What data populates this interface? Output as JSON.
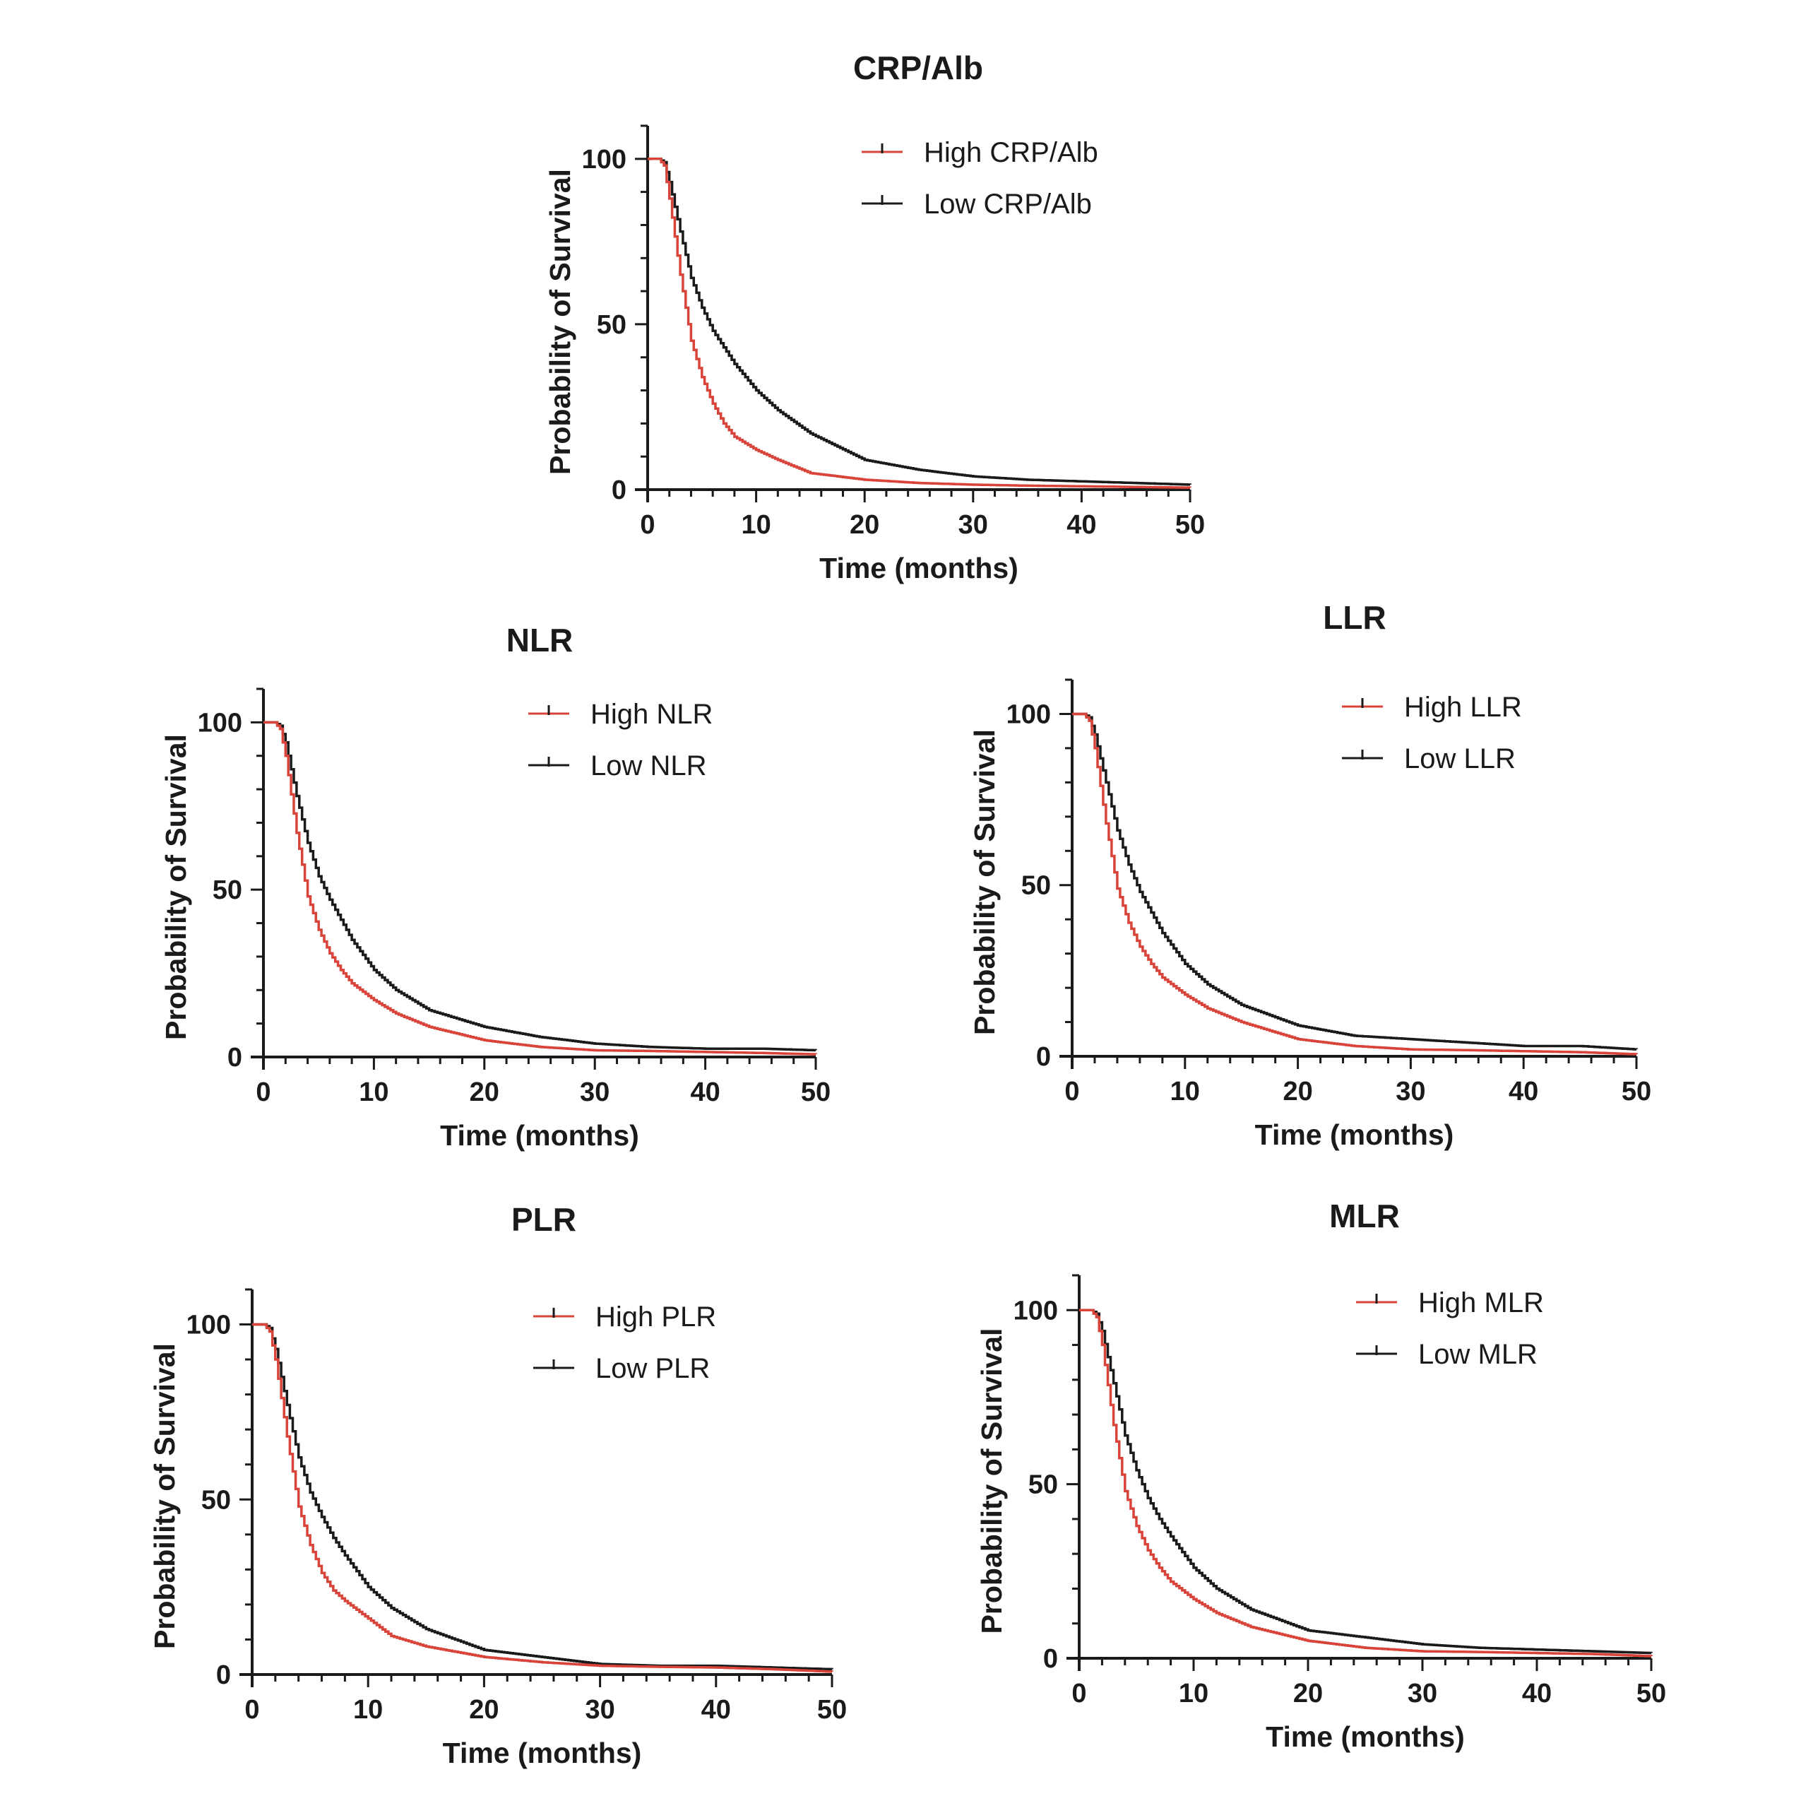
{
  "colors": {
    "high": "#d9443a",
    "low": "#1a1a1a",
    "axis": "#1a1a1a"
  },
  "chart_data": [
    {
      "id": "crp-alb",
      "type": "line",
      "subtype": "kaplan-meier",
      "title": "CRP/Alb",
      "xlabel": "Time (months)",
      "ylabel": "Probability of Survival",
      "xlim": [
        0,
        50
      ],
      "ylim": [
        0,
        110
      ],
      "xticks": [
        0,
        10,
        20,
        30,
        40,
        50
      ],
      "yticks": [
        0,
        50,
        100
      ],
      "grid": false,
      "legend": "top-right",
      "series": [
        {
          "name": "High CRP/Alb",
          "color": "#d9443a",
          "x": [
            0,
            1,
            1.5,
            2,
            3,
            4,
            5,
            6,
            7,
            8,
            10,
            12,
            15,
            20,
            25,
            30,
            35,
            40,
            45,
            50
          ],
          "y": [
            100,
            100,
            98,
            88,
            65,
            45,
            34,
            26,
            20,
            16,
            12,
            9,
            5,
            3,
            2,
            1.5,
            1.2,
            1,
            0.8,
            0.6
          ]
        },
        {
          "name": "Low CRP/Alb",
          "color": "#1a1a1a",
          "x": [
            0,
            1,
            1.5,
            2,
            3,
            4,
            5,
            6,
            7,
            8,
            10,
            12,
            15,
            20,
            25,
            30,
            35,
            40,
            45,
            50
          ],
          "y": [
            100,
            100,
            99,
            93,
            78,
            64,
            55,
            48,
            43,
            38,
            30,
            24,
            17,
            9,
            6,
            4,
            3,
            2.5,
            2,
            1.5
          ]
        }
      ]
    },
    {
      "id": "nlr",
      "type": "line",
      "subtype": "kaplan-meier",
      "title": "NLR",
      "xlabel": "Time (months)",
      "ylabel": "Probability of Survival",
      "xlim": [
        0,
        50
      ],
      "ylim": [
        0,
        110
      ],
      "xticks": [
        0,
        10,
        20,
        30,
        40,
        50
      ],
      "yticks": [
        0,
        50,
        100
      ],
      "grid": false,
      "legend": "top-right",
      "series": [
        {
          "name": "High NLR",
          "color": "#d9443a",
          "x": [
            0,
            1,
            1.5,
            2,
            3,
            4,
            5,
            6,
            7,
            8,
            10,
            12,
            15,
            20,
            25,
            30,
            35,
            40,
            45,
            50
          ],
          "y": [
            100,
            100,
            98,
            90,
            67,
            48,
            38,
            31,
            26,
            22,
            17,
            13,
            9,
            5,
            3,
            2,
            1.8,
            1.5,
            1.2,
            0.8
          ]
        },
        {
          "name": "Low NLR",
          "color": "#1a1a1a",
          "x": [
            0,
            1,
            1.5,
            2,
            3,
            4,
            5,
            6,
            7,
            8,
            10,
            12,
            15,
            20,
            25,
            30,
            35,
            40,
            45,
            50
          ],
          "y": [
            100,
            100,
            99,
            94,
            78,
            64,
            54,
            47,
            41,
            35,
            26,
            20,
            14,
            9,
            6,
            4,
            3,
            2.5,
            2.5,
            2
          ]
        }
      ]
    },
    {
      "id": "llr",
      "type": "line",
      "subtype": "kaplan-meier",
      "title": "LLR",
      "xlabel": "Time (months)",
      "ylabel": "Probability of Survival",
      "xlim": [
        0,
        50
      ],
      "ylim": [
        0,
        110
      ],
      "xticks": [
        0,
        10,
        20,
        30,
        40,
        50
      ],
      "yticks": [
        0,
        50,
        100
      ],
      "grid": false,
      "legend": "top-right",
      "series": [
        {
          "name": "High LLR",
          "color": "#d9443a",
          "x": [
            0,
            1,
            1.5,
            2,
            3,
            4,
            5,
            6,
            7,
            8,
            10,
            12,
            15,
            20,
            25,
            30,
            35,
            40,
            45,
            50
          ],
          "y": [
            100,
            100,
            98,
            90,
            68,
            49,
            39,
            32,
            27,
            23,
            18,
            14,
            10,
            5,
            3,
            2,
            1.8,
            1.5,
            1.2,
            0.6
          ]
        },
        {
          "name": "Low LLR",
          "color": "#1a1a1a",
          "x": [
            0,
            1,
            1.5,
            2,
            3,
            4,
            5,
            6,
            7,
            8,
            10,
            12,
            15,
            20,
            25,
            30,
            35,
            40,
            45,
            50
          ],
          "y": [
            100,
            100,
            99,
            94,
            80,
            66,
            56,
            48,
            42,
            36,
            27,
            21,
            15,
            9,
            6,
            5,
            4,
            3,
            3,
            2
          ]
        }
      ]
    },
    {
      "id": "plr",
      "type": "line",
      "subtype": "kaplan-meier",
      "title": "PLR",
      "xlabel": "Time (months)",
      "ylabel": "Probability of Survival",
      "xlim": [
        0,
        50
      ],
      "ylim": [
        0,
        110
      ],
      "xticks": [
        0,
        10,
        20,
        30,
        40,
        50
      ],
      "yticks": [
        0,
        50,
        100
      ],
      "grid": false,
      "legend": "top-right",
      "series": [
        {
          "name": "High PLR",
          "color": "#d9443a",
          "x": [
            0,
            1,
            1.5,
            2,
            3,
            4,
            5,
            6,
            7,
            8,
            10,
            12,
            15,
            20,
            25,
            30,
            35,
            40,
            45,
            50
          ],
          "y": [
            100,
            100,
            98,
            90,
            68,
            48,
            37,
            29,
            24,
            21,
            16,
            11,
            8,
            5,
            3.5,
            2.5,
            2.2,
            2,
            1.5,
            0.8
          ]
        },
        {
          "name": "Low PLR",
          "color": "#1a1a1a",
          "x": [
            0,
            1,
            1.5,
            2,
            3,
            4,
            5,
            6,
            7,
            8,
            10,
            12,
            15,
            20,
            25,
            30,
            35,
            40,
            45,
            50
          ],
          "y": [
            100,
            100,
            99,
            93,
            77,
            62,
            52,
            45,
            39,
            34,
            25,
            19,
            13,
            7,
            5,
            3,
            2.5,
            2.5,
            2,
            1.5
          ]
        }
      ]
    },
    {
      "id": "mlr",
      "type": "line",
      "subtype": "kaplan-meier",
      "title": "MLR",
      "xlabel": "Time (months)",
      "ylabel": "Probability of Survival",
      "xlim": [
        0,
        50
      ],
      "ylim": [
        0,
        110
      ],
      "xticks": [
        0,
        10,
        20,
        30,
        40,
        50
      ],
      "yticks": [
        0,
        50,
        100
      ],
      "grid": false,
      "legend": "top-right",
      "series": [
        {
          "name": "High MLR",
          "color": "#d9443a",
          "x": [
            0,
            1,
            1.5,
            2,
            3,
            4,
            5,
            6,
            7,
            8,
            10,
            12,
            15,
            20,
            25,
            30,
            35,
            40,
            45,
            50
          ],
          "y": [
            100,
            100,
            98,
            90,
            67,
            48,
            38,
            31,
            26,
            22,
            17,
            13,
            9,
            5,
            3,
            2,
            1.8,
            1.5,
            1.2,
            0.6
          ]
        },
        {
          "name": "Low MLR",
          "color": "#1a1a1a",
          "x": [
            0,
            1,
            1.5,
            2,
            3,
            4,
            5,
            6,
            7,
            8,
            10,
            12,
            15,
            20,
            25,
            30,
            35,
            40,
            45,
            50
          ],
          "y": [
            100,
            100,
            99,
            94,
            79,
            64,
            54,
            46,
            40,
            35,
            26,
            20,
            14,
            8,
            6,
            4,
            3,
            2.5,
            2,
            1.5
          ]
        }
      ]
    }
  ]
}
